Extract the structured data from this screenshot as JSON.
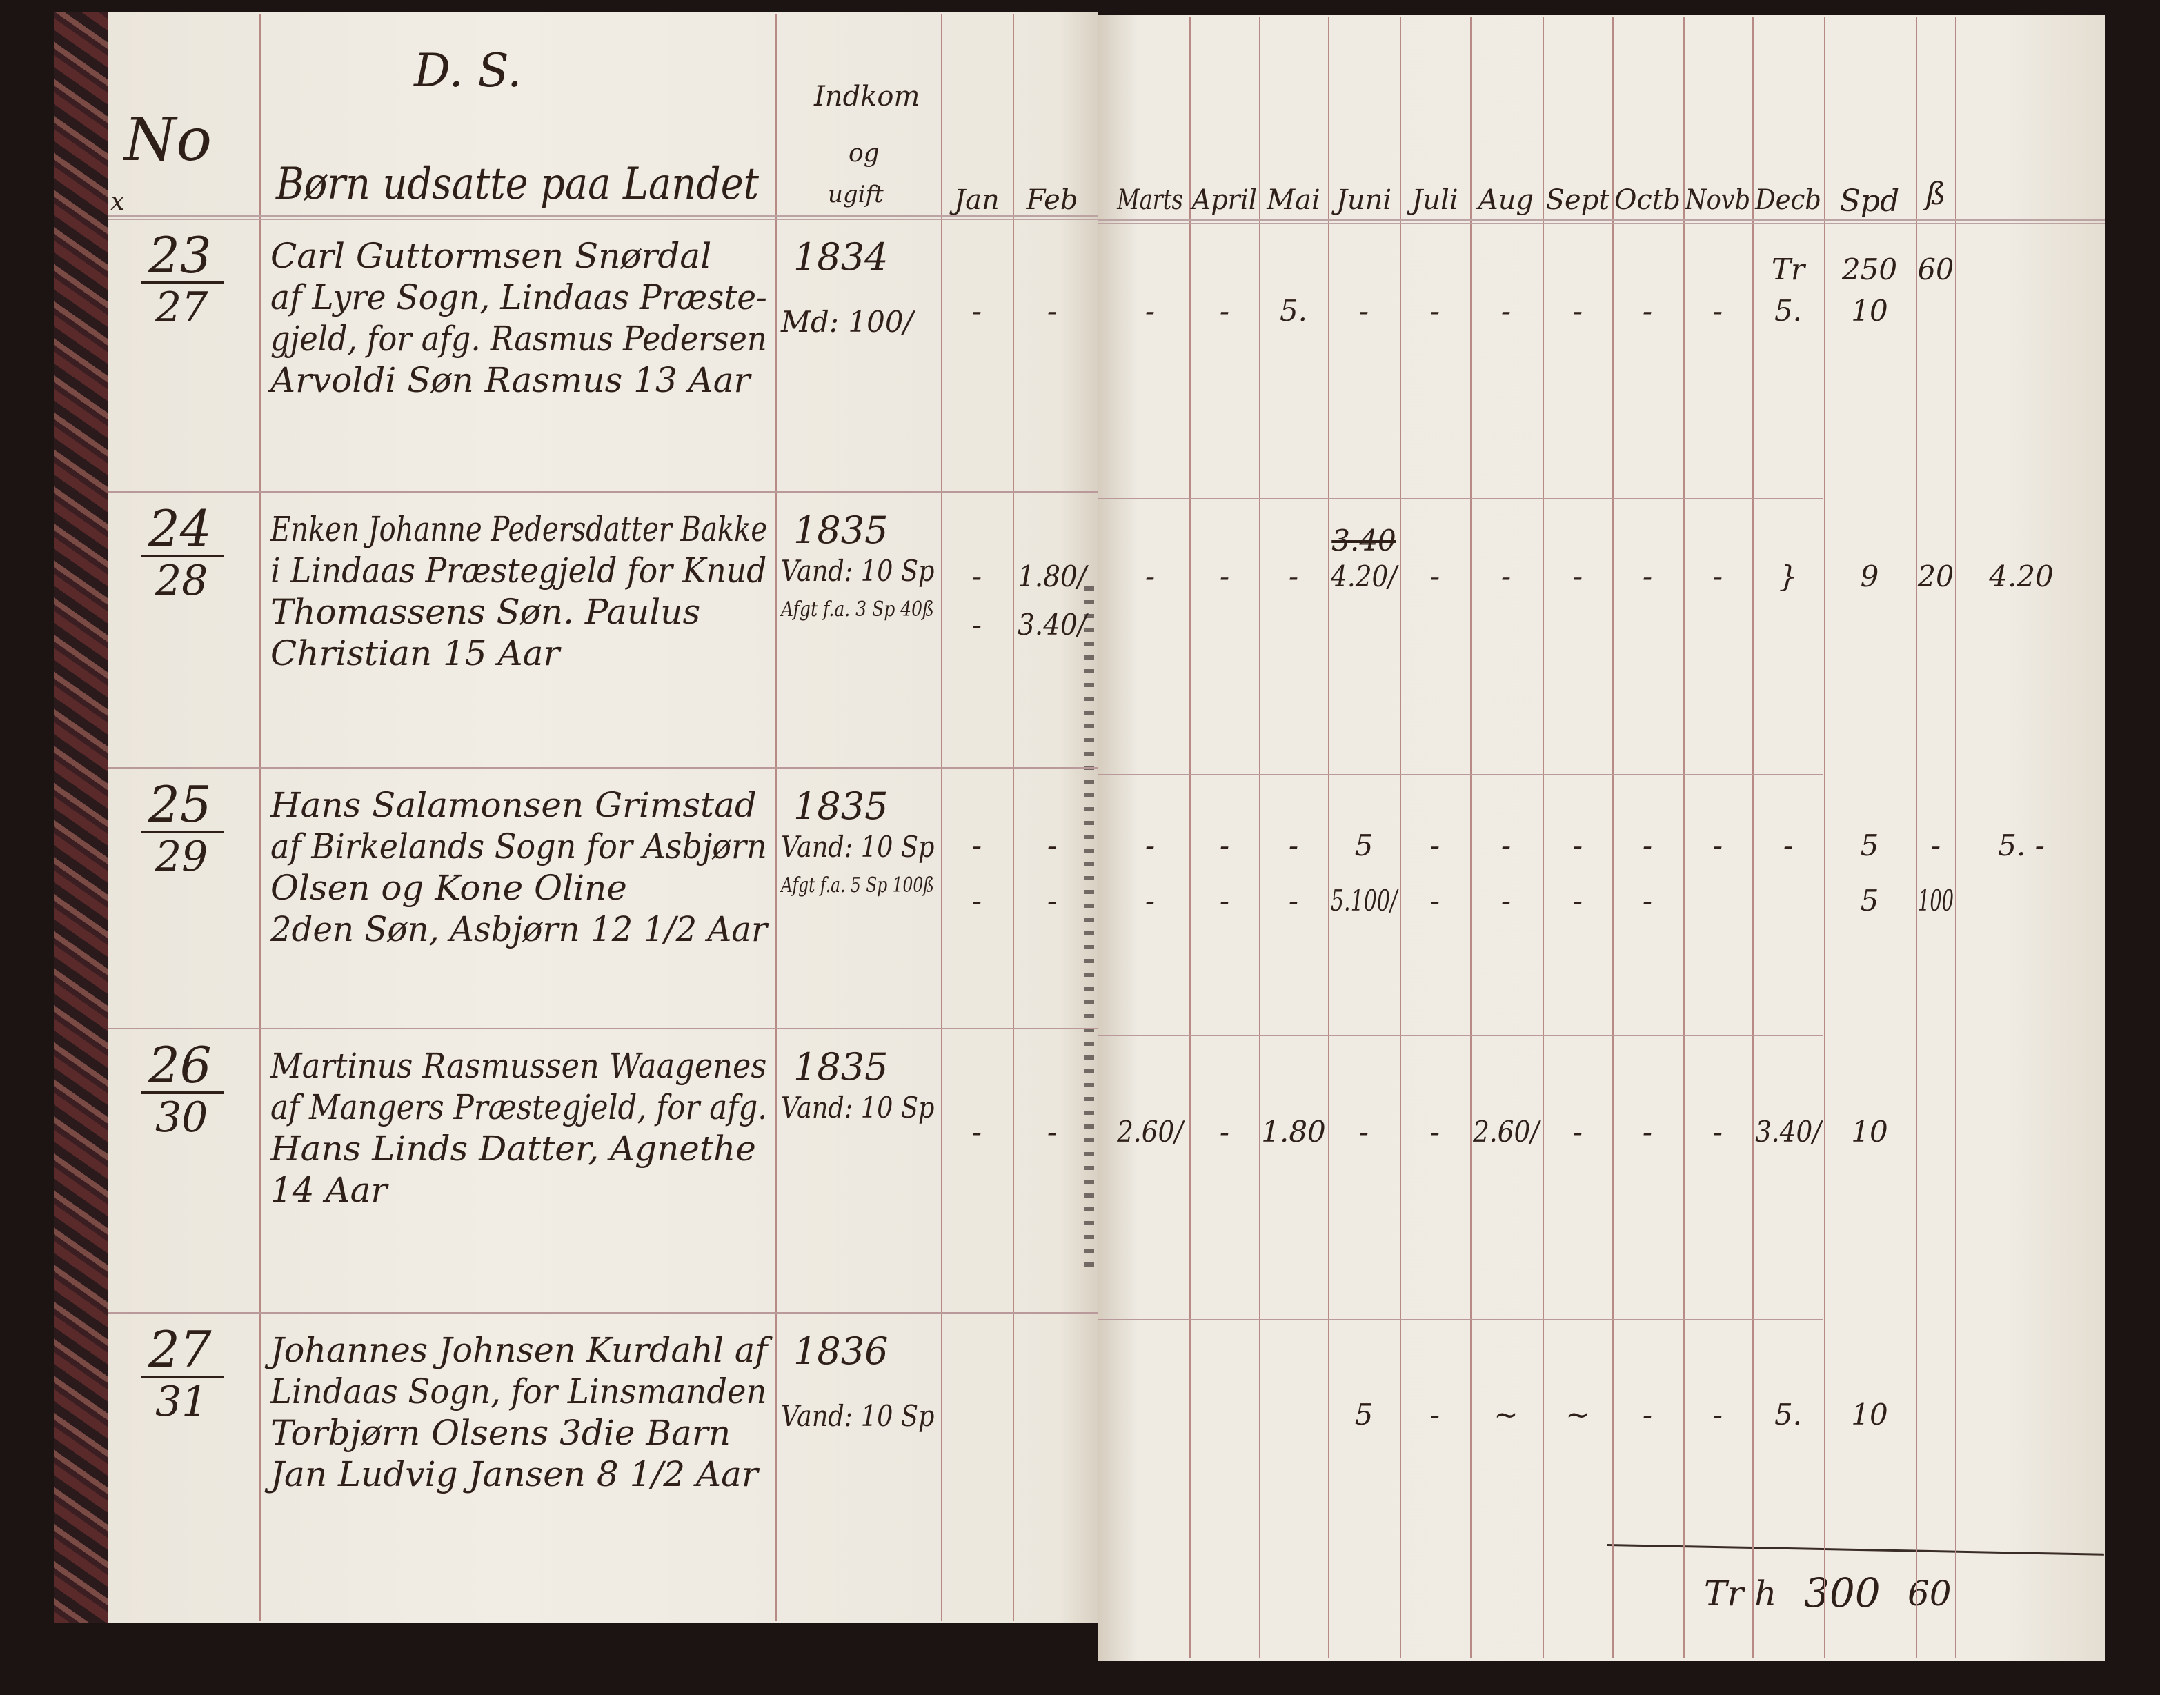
{
  "header": {
    "no_label": "No",
    "ds_label": "D. S.",
    "mark": "x",
    "title": "Børn udsatte paa Landet",
    "income_label": [
      "Indkom",
      "og",
      "ugift"
    ],
    "months": [
      "Jan",
      "Feb",
      "Marts",
      "April",
      "Mai",
      "Juni",
      "Juli",
      "Aug",
      "Sept",
      "Octb",
      "Novb",
      "Decb"
    ],
    "spd_label": "Spd",
    "skilling_label": "ß"
  },
  "rows": [
    {
      "number": "23",
      "sub_number": "27",
      "lines": [
        "Carl Guttormsen Snørdal",
        "af Lyre Sogn, Lindaas Præste-",
        "gjeld, for afg. Rasmus Pedersen",
        "Arvoldi Søn Rasmus 13 Aar"
      ],
      "year": "1834",
      "notes": [
        "Md: 100/"
      ],
      "payments": [
        {
          "Decb": "Tr",
          "Spd": "250",
          "ß": "60"
        },
        {
          "Jan": "-",
          "Feb": "-",
          "Marts": "-",
          "April": "-",
          "Mai": "5.",
          "Juni": "-",
          "Juli": "-",
          "Aug": "-",
          "Sept": "-",
          "Octb": "-",
          "Novb": "-",
          "Decb": "5.",
          "Spd": "10"
        }
      ]
    },
    {
      "number": "24",
      "sub_number": "28",
      "lines": [
        "Enken Johanne Pedersdatter Bakke",
        "i Lindaas Præstegjeld for Knud",
        "Thomassens Søn. Paulus",
        "Christian 15 Aar"
      ],
      "year": "1835",
      "notes": [
        "Vand: 10 Sp",
        "Afgt f.a. 3 Sp 40ß"
      ],
      "juni_struck": "3.40",
      "payments": [
        {
          "Jan": "-",
          "Feb": "1.80/",
          "Marts": "-",
          "April": "-",
          "Mai": "-",
          "Juni": "4.20/",
          "Juli": "-",
          "Aug": "-",
          "Sept": "-",
          "Octb": "-",
          "Novb": "-",
          "Decb": "}",
          "Spd": "9",
          "ß": "20",
          "Extra": "4.20"
        },
        {
          "Jan": "-",
          "Feb": "3.40/"
        }
      ]
    },
    {
      "number": "25",
      "sub_number": "29",
      "lines": [
        "Hans Salamonsen Grimstad",
        "af Birkelands Sogn for Asbjørn",
        "Olsen og Kone Oline",
        "2den Søn, Asbjørn 12 1/2 Aar"
      ],
      "year": "1835",
      "notes": [
        "Vand: 10 Sp",
        "Afgt f.a. 5 Sp 100ß"
      ],
      "payments": [
        {
          "Jan": "-",
          "Feb": "-",
          "Marts": "-",
          "April": "-",
          "Mai": "-",
          "Juni": "5",
          "Juli": "-",
          "Aug": "-",
          "Sept": "-",
          "Octb": "-",
          "Novb": "-",
          "Decb": "-",
          "Spd": "5",
          "ß": "-",
          "Extra": "5. -"
        },
        {
          "Jan": "-",
          "Feb": "-",
          "Marts": "-",
          "April": "-",
          "Mai": "-",
          "Juni": "5.100/",
          "Juli": "-",
          "Aug": "-",
          "Sept": "-",
          "Octb": "-",
          "Spd": "5",
          "ß": "100"
        }
      ]
    },
    {
      "number": "26",
      "sub_number": "30",
      "lines": [
        "Martinus Rasmussen Waagenes",
        "af Mangers Præstegjeld, for afg.",
        "Hans Linds Datter, Agnethe",
        "14 Aar"
      ],
      "year": "1835",
      "notes": [
        "Vand: 10 Sp"
      ],
      "payments": [
        {
          "Jan": "-",
          "Feb": "-",
          "Marts": "2.60/",
          "April": "-",
          "Mai": "1.80",
          "Juni": "-",
          "Juli": "-",
          "Aug": "2.60/",
          "Sept": "-",
          "Octb": "-",
          "Novb": "-",
          "Decb": "3.40/",
          "Spd": "10"
        }
      ]
    },
    {
      "number": "27",
      "sub_number": "31",
      "lines": [
        "Johannes Johnsen Kurdahl af",
        "Lindaas Sogn, for Linsmanden",
        "Torbjørn Olsens 3die Barn",
        "Jan Ludvig Jansen 8 1/2 Aar"
      ],
      "year": "1836",
      "notes": [
        "Vand: 10 Sp"
      ],
      "payments": [
        {
          "Juni": "5",
          "Juli": "-",
          "Aug": "~",
          "Sept": "~",
          "Octb": "-",
          "Novb": "-",
          "Decb": "5.",
          "Spd": "10"
        }
      ]
    }
  ],
  "total": {
    "prefix": "Tr h",
    "spd": "300",
    "skilling": "60"
  },
  "colors": {
    "ink": "#2e2019",
    "rule": "#b88a86",
    "paper": "#efebe2"
  }
}
